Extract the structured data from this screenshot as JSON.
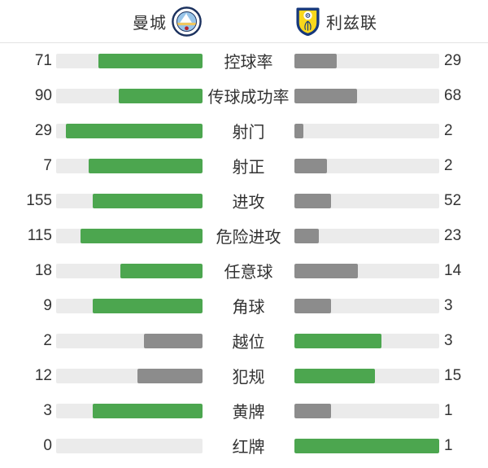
{
  "colors": {
    "green": "#4ca64f",
    "gray": "#8c8c8c",
    "track": "#ebebeb",
    "text": "#333333",
    "divider": "#e3e3e3",
    "mc_navy": "#1b315e",
    "mc_sky": "#98c5e9",
    "mc_gold": "#f0c75e",
    "mc_red": "#b5222f",
    "leeds_yellow": "#f8d71c",
    "leeds_blue": "#16387c"
  },
  "header": {
    "home_team": "曼城",
    "away_team": "利兹联",
    "home_crest": "manchester-city-crest",
    "away_crest": "leeds-united-crest"
  },
  "chart_data": {
    "type": "bar",
    "title": "",
    "legend": [
      "曼城",
      "利兹联"
    ],
    "categories": [
      "控球率",
      "传球成功率",
      "射门",
      "射正",
      "进攻",
      "危险进攻",
      "任意球",
      "角球",
      "越位",
      "犯规",
      "黄牌",
      "红牌"
    ],
    "series": [
      {
        "name": "曼城",
        "values": [
          71,
          90,
          29,
          7,
          155,
          115,
          18,
          9,
          2,
          12,
          3,
          0
        ]
      },
      {
        "name": "利兹联",
        "values": [
          29,
          68,
          2,
          2,
          52,
          23,
          14,
          3,
          3,
          15,
          1,
          1
        ]
      }
    ],
    "layout": "mirrored horizontal bars; stat label centered; left bars anchored right, right bars anchored left; fill fraction = value/(home+away); higher value green, lower value gray; zero value shows empty track"
  },
  "rows": [
    {
      "label": "控球率",
      "home": 71,
      "away": 29
    },
    {
      "label": "传球成功率",
      "home": 90,
      "away": 68
    },
    {
      "label": "射门",
      "home": 29,
      "away": 2
    },
    {
      "label": "射正",
      "home": 7,
      "away": 2
    },
    {
      "label": "进攻",
      "home": 155,
      "away": 52
    },
    {
      "label": "危险进攻",
      "home": 115,
      "away": 23
    },
    {
      "label": "任意球",
      "home": 18,
      "away": 14
    },
    {
      "label": "角球",
      "home": 9,
      "away": 3
    },
    {
      "label": "越位",
      "home": 2,
      "away": 3
    },
    {
      "label": "犯规",
      "home": 12,
      "away": 15
    },
    {
      "label": "黄牌",
      "home": 3,
      "away": 1
    },
    {
      "label": "红牌",
      "home": 0,
      "away": 1
    }
  ]
}
